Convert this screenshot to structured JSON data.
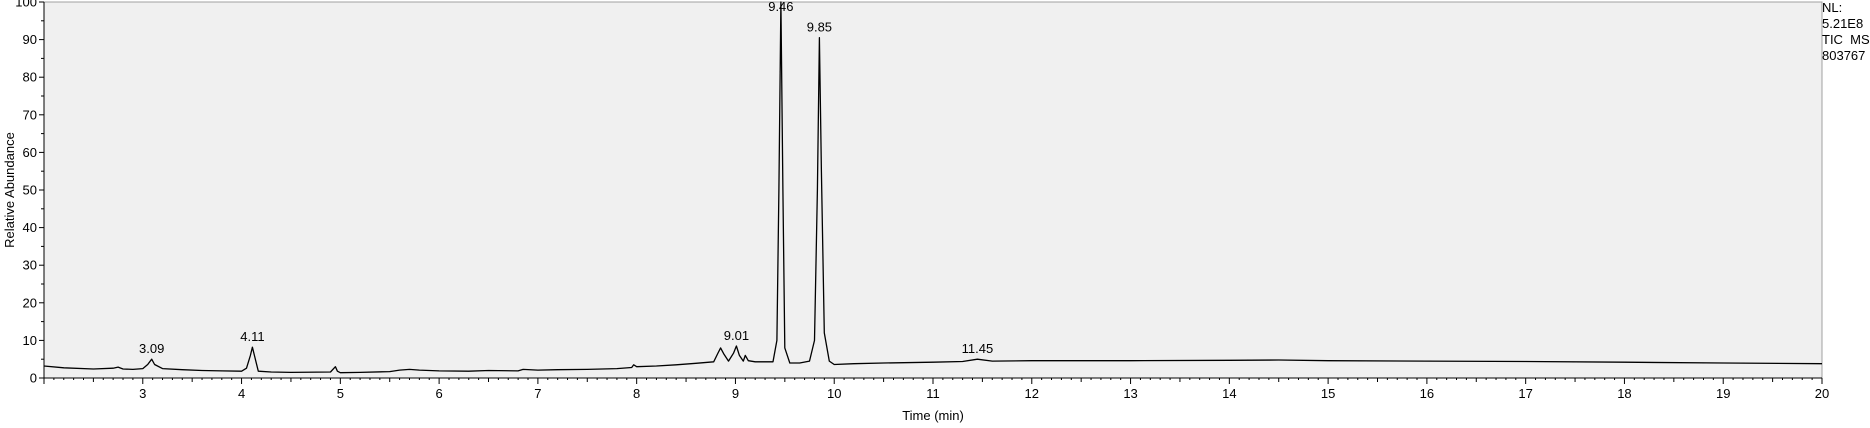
{
  "chart_data": {
    "type": "line",
    "title": "",
    "xlabel": "Time (min)",
    "ylabel": "Relative Abundance",
    "xlim": [
      2.0,
      20.0
    ],
    "ylim": [
      0,
      100
    ],
    "x_ticks": [
      3,
      4,
      5,
      6,
      7,
      8,
      9,
      10,
      11,
      12,
      13,
      14,
      15,
      16,
      17,
      18,
      19,
      20
    ],
    "y_ticks": [
      0,
      10,
      20,
      30,
      40,
      50,
      60,
      70,
      80,
      90,
      100
    ],
    "x_tick_labels": [
      "3",
      "4",
      "5",
      "6",
      "7",
      "8",
      "9",
      "10",
      "11",
      "12",
      "13",
      "14",
      "15",
      "16",
      "17",
      "18",
      "19",
      "20"
    ],
    "y_tick_labels": [
      "0",
      "10",
      "20",
      "30",
      "40",
      "50",
      "60",
      "70",
      "80",
      "90",
      "100"
    ],
    "grid": false,
    "legend": "none",
    "plot_background": "#f0f0f0",
    "line_color": "#000000",
    "peak_labels": [
      {
        "x": 3.09,
        "y": 5.0,
        "label": "3.09"
      },
      {
        "x": 4.11,
        "y": 8.2,
        "label": "4.11"
      },
      {
        "x": 9.01,
        "y": 8.5,
        "label": "9.01"
      },
      {
        "x": 9.46,
        "y": 100.0,
        "label": "9.46"
      },
      {
        "x": 9.85,
        "y": 90.5,
        "label": "9.85"
      },
      {
        "x": 11.45,
        "y": 5.0,
        "label": "11.45"
      }
    ],
    "series": [
      {
        "x": [
          2.0,
          2.2,
          2.5,
          2.7,
          2.75,
          2.8,
          2.9,
          3.0,
          3.05,
          3.09,
          3.12,
          3.2,
          3.4,
          3.6,
          3.8,
          4.0,
          4.05,
          4.09,
          4.11,
          4.13,
          4.17,
          4.3,
          4.5,
          4.9,
          4.95,
          4.97,
          5.0,
          5.2,
          5.5,
          5.6,
          5.7,
          5.8,
          6.0,
          6.3,
          6.5,
          6.8,
          6.85,
          7.0,
          7.2,
          7.5,
          7.8,
          7.95,
          7.97,
          8.0,
          8.2,
          8.4,
          8.6,
          8.78,
          8.82,
          8.85,
          8.88,
          8.93,
          8.98,
          9.01,
          9.04,
          9.08,
          9.1,
          9.13,
          9.2,
          9.38,
          9.42,
          9.44,
          9.46,
          9.48,
          9.5,
          9.55,
          9.65,
          9.75,
          9.8,
          9.83,
          9.85,
          9.87,
          9.9,
          9.95,
          10.0,
          10.2,
          10.5,
          11.0,
          11.3,
          11.45,
          11.6,
          12.0,
          13.0,
          14.0,
          14.5,
          15.0,
          16.0,
          17.0,
          18.0,
          19.0,
          20.0
        ],
        "y": [
          3.2,
          2.7,
          2.4,
          2.6,
          2.9,
          2.4,
          2.3,
          2.5,
          3.6,
          5.0,
          3.6,
          2.5,
          2.2,
          2.0,
          1.9,
          1.8,
          2.6,
          6.0,
          8.2,
          6.0,
          1.8,
          1.6,
          1.5,
          1.6,
          3.0,
          1.8,
          1.4,
          1.5,
          1.7,
          2.1,
          2.3,
          2.1,
          1.9,
          1.8,
          2.0,
          1.9,
          2.3,
          2.1,
          2.2,
          2.3,
          2.5,
          2.8,
          3.5,
          3.0,
          3.2,
          3.5,
          3.9,
          4.3,
          6.5,
          8.0,
          6.5,
          4.5,
          6.6,
          8.5,
          6.0,
          4.5,
          6.0,
          4.6,
          4.3,
          4.3,
          10.0,
          50.0,
          100.0,
          50.0,
          8.0,
          4.0,
          4.0,
          4.5,
          10.0,
          50.0,
          90.5,
          55.0,
          12.0,
          4.5,
          3.6,
          3.8,
          4.0,
          4.2,
          4.4,
          5.0,
          4.5,
          4.6,
          4.6,
          4.7,
          4.8,
          4.6,
          4.5,
          4.4,
          4.2,
          4.0,
          3.8
        ]
      }
    ]
  },
  "header": {
    "nl_label": "NL:",
    "nl_value": "5.21E8",
    "trace_label": "TIC  MS",
    "file_id": "803767"
  }
}
